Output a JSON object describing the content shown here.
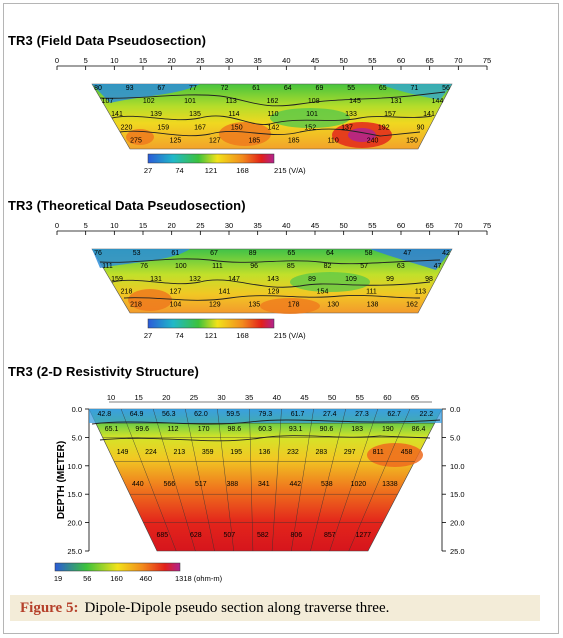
{
  "panels": {
    "field_title": "TR3 (Field Data Pseudosection)",
    "theory_title": "TR3 (Theoretical Data Pseudosection)",
    "structure_title": "TR3 (2-D Resistivity Structure)"
  },
  "pseudo_axis_ticks": [
    "0",
    "5",
    "10",
    "15",
    "20",
    "25",
    "30",
    "35",
    "40",
    "45",
    "50",
    "55",
    "60",
    "65",
    "70",
    "75"
  ],
  "structure_axis_ticks": [
    "10",
    "15",
    "20",
    "25",
    "30",
    "35",
    "40",
    "45",
    "50",
    "55",
    "60",
    "65"
  ],
  "depth_ticks": [
    "0.0",
    "5.0",
    "10.0",
    "15.0",
    "20.0",
    "25.0"
  ],
  "depth_label": "DEPTH (METER)",
  "pseudo_scale": {
    "labels": [
      "27",
      "74",
      "121",
      "168",
      "215 (V/A)"
    ]
  },
  "structure_scale": {
    "labels": [
      "19",
      "56",
      "160",
      "460",
      "1318 (ohm-m)"
    ]
  },
  "field_values": [
    [
      "80",
      "93",
      "67",
      "77",
      "72",
      "61",
      "64",
      "69",
      "55",
      "65",
      "71",
      "56"
    ],
    [
      "107",
      "102",
      "101",
      "113",
      "162",
      "108",
      "145",
      "131",
      "144"
    ],
    [
      "141",
      "139",
      "135",
      "114",
      "110",
      "101",
      "133",
      "157",
      "141"
    ],
    [
      "220",
      "159",
      "167",
      "150",
      "142",
      "152",
      "137",
      "192",
      "90"
    ],
    [
      "275",
      "125",
      "127",
      "185",
      "185",
      "110",
      "240",
      "150"
    ]
  ],
  "theory_values": [
    [
      "76",
      "53",
      "61",
      "67",
      "89",
      "65",
      "64",
      "58",
      "47",
      "42"
    ],
    [
      "111",
      "76",
      "100",
      "111",
      "96",
      "85",
      "82",
      "57",
      "63",
      "47"
    ],
    [
      "159",
      "131",
      "132",
      "147",
      "143",
      "89",
      "109",
      "99",
      "98"
    ],
    [
      "218",
      "127",
      "141",
      "129",
      "154",
      "111",
      "113"
    ],
    [
      "218",
      "104",
      "129",
      "135",
      "178",
      "130",
      "138",
      "162"
    ]
  ],
  "structure_values": [
    [
      "42.8",
      "64.9",
      "56.3",
      "62.0",
      "59.5",
      "79.3",
      "61.7",
      "27.4",
      "27.3",
      "62.7",
      "22.2"
    ],
    [
      "65.1",
      "99.6",
      "112",
      "170",
      "98.6",
      "60.3",
      "93.1",
      "90.6",
      "183",
      "190",
      "86.4"
    ],
    [
      "149",
      "224",
      "213",
      "359",
      "195",
      "136",
      "232",
      "283",
      "297",
      "811",
      "458"
    ],
    [
      "440",
      "566",
      "517",
      "388",
      "341",
      "442",
      "538",
      "1020",
      "1338"
    ],
    [
      "685",
      "628",
      "507",
      "582",
      "806",
      "857",
      "1277"
    ]
  ],
  "caption": {
    "label": "Figure 5:",
    "text": "Dipole-Dipole pseudo section along traverse three."
  },
  "colors": {
    "low": "#2b5bd8",
    "mid": "#3cc23c",
    "high_yellow": "#f2e21a",
    "orange": "#f28a1c",
    "red": "#e2201a",
    "magenta": "#b1238e"
  }
}
